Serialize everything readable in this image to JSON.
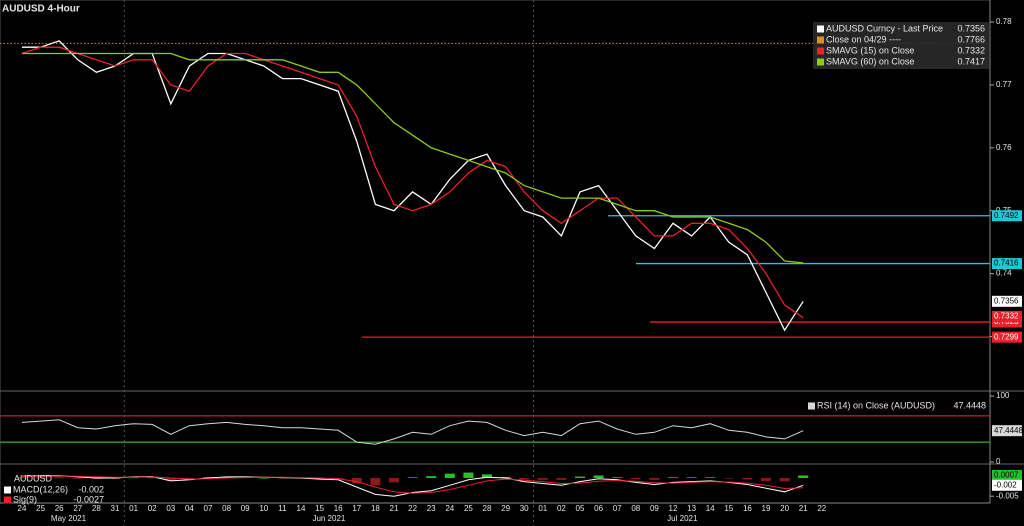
{
  "chart_data": [
    {
      "type": "line",
      "title": "AUDUSD 4-Hour",
      "categories": [
        "24",
        "25",
        "26",
        "27",
        "28",
        "31",
        "01",
        "02",
        "03",
        "04",
        "07",
        "08",
        "09",
        "10",
        "11",
        "14",
        "15",
        "16",
        "17",
        "18",
        "21",
        "22",
        "23",
        "24",
        "25",
        "28",
        "29",
        "30",
        "01",
        "02",
        "05",
        "06",
        "07",
        "08",
        "09",
        "12",
        "13",
        "14",
        "15",
        "16",
        "19",
        "20",
        "21",
        "22"
      ],
      "months": [
        "May 2021",
        "Jun 2021",
        "Jul 2021"
      ],
      "ylim": [
        0.7215,
        0.7835
      ],
      "yticks": [
        0.73,
        0.74,
        0.75,
        0.76,
        0.77,
        0.78
      ],
      "series": [
        {
          "name": "AUDUSD Curncy - Last Price",
          "color": "#ffffff",
          "last": 0.7356,
          "tag": true,
          "values": [
            0.776,
            0.776,
            0.777,
            0.774,
            0.772,
            0.773,
            0.775,
            0.775,
            0.767,
            0.773,
            0.775,
            0.775,
            0.774,
            0.773,
            0.771,
            0.771,
            0.77,
            0.769,
            0.761,
            0.751,
            0.75,
            0.753,
            0.751,
            0.755,
            0.758,
            0.759,
            0.754,
            0.75,
            0.749,
            0.746,
            0.753,
            0.754,
            0.75,
            0.746,
            0.744,
            0.748,
            0.746,
            0.749,
            0.745,
            0.743,
            0.737,
            0.731,
            0.7356,
            null
          ]
        },
        {
          "name": "Close on 04/29 ----",
          "color": "#d8902a",
          "kind": "hline",
          "style": "dotted",
          "last": 0.7766
        },
        {
          "name": "SMAVG (15)  on Close",
          "color": "#e8212b",
          "last": 0.7332,
          "tag": true,
          "values": [
            0.775,
            0.776,
            0.776,
            0.775,
            0.774,
            0.773,
            0.774,
            0.774,
            0.77,
            0.769,
            0.773,
            0.775,
            0.775,
            0.774,
            0.773,
            0.772,
            0.771,
            0.77,
            0.765,
            0.757,
            0.751,
            0.75,
            0.751,
            0.753,
            0.756,
            0.758,
            0.757,
            0.753,
            0.75,
            0.748,
            0.75,
            0.752,
            0.752,
            0.749,
            0.746,
            0.746,
            0.748,
            0.748,
            0.747,
            0.744,
            0.74,
            0.735,
            0.733,
            null
          ]
        },
        {
          "name": "SMAVG (60)  on Close",
          "color": "#8ccc1e",
          "last": 0.7417,
          "values": [
            0.775,
            0.775,
            0.775,
            0.775,
            0.775,
            0.775,
            0.775,
            0.775,
            0.775,
            0.774,
            0.774,
            0.774,
            0.774,
            0.774,
            0.774,
            0.773,
            0.772,
            0.772,
            0.77,
            0.767,
            0.764,
            0.762,
            0.76,
            0.759,
            0.758,
            0.757,
            0.756,
            0.754,
            0.753,
            0.752,
            0.752,
            0.752,
            0.751,
            0.75,
            0.75,
            0.749,
            0.749,
            0.749,
            0.748,
            0.747,
            0.745,
            0.742,
            0.7417,
            null
          ]
        }
      ],
      "levels": [
        {
          "value": 0.7492,
          "color": "#1ec8d8"
        },
        {
          "value": 0.7416,
          "color": "#1ec8d8"
        },
        {
          "value": 0.7323,
          "color": "#e8212b"
        },
        {
          "value": 0.7299,
          "color": "#e8212b"
        }
      ]
    },
    {
      "type": "line",
      "ylim": [
        0,
        100
      ],
      "yticks": [
        0,
        100
      ],
      "series": [
        {
          "name": "RSI (14)  on Close (AUDUSD)",
          "color": "#d8d8d8",
          "last": 47.4448,
          "tag": true,
          "values": [
            60,
            62,
            64,
            52,
            50,
            55,
            58,
            57,
            42,
            55,
            58,
            60,
            57,
            55,
            52,
            52,
            50,
            48,
            30,
            27,
            35,
            45,
            42,
            55,
            62,
            60,
            48,
            40,
            45,
            40,
            58,
            62,
            50,
            42,
            45,
            55,
            52,
            58,
            48,
            45,
            38,
            35,
            47.4448,
            null
          ]
        }
      ],
      "levels": [
        {
          "value": 70,
          "color": "#c8141e"
        },
        {
          "value": 30,
          "color": "#2ea02e"
        }
      ]
    },
    {
      "type": "line",
      "title": "AUDUSD",
      "ylim": [
        -0.0066,
        0.0033
      ],
      "yticks": [
        -0.005
      ],
      "series": [
        {
          "color": "#22c02a",
          "kind": "bar",
          "last": 0.0007,
          "tag": true,
          "values": [
            0.0001,
            0.0001,
            0.0001,
            -0.0002,
            -0.0003,
            -0.0002,
            0.0001,
            0.0001,
            -0.0008,
            -0.0002,
            0.0002,
            0.0003,
            0.0002,
            0,
            -0.0001,
            -0.0001,
            -0.0003,
            -0.0003,
            -0.0015,
            -0.002,
            -0.0012,
            0.0002,
            0.0005,
            0.0012,
            0.0015,
            0.001,
            0.0003,
            -0.0004,
            -0.0005,
            -0.0005,
            0.0004,
            0.0007,
            0.0002,
            -0.0003,
            -0.0005,
            0.0002,
            0.0002,
            0.0002,
            -0.0001,
            -0.0004,
            -0.0008,
            -0.0009,
            0.0007,
            null
          ]
        },
        {
          "name": "MACD(12,26)",
          "color": "#ffffff",
          "last": -0.002,
          "tag": true,
          "values": [
            0.0005,
            0.0006,
            0.0006,
            0.0003,
            0,
            0,
            0.0003,
            0.0004,
            -0.0008,
            -0.0005,
            0,
            0.0003,
            0.0003,
            0.0002,
            0.0001,
            0,
            -0.0003,
            -0.0005,
            -0.0025,
            -0.0045,
            -0.005,
            -0.004,
            -0.0035,
            -0.002,
            -0.0005,
            0.0002,
            0,
            -0.001,
            -0.0015,
            -0.002,
            -0.001,
            -0.0002,
            -0.0005,
            -0.0012,
            -0.0018,
            -0.0012,
            -0.001,
            -0.0008,
            -0.0012,
            -0.0018,
            -0.0028,
            -0.0038,
            -0.002,
            null
          ]
        },
        {
          "name": "Sig(9)",
          "color": "#e8212b",
          "last": -0.0027,
          "values": [
            0.0004,
            0.0005,
            0.0005,
            0.0005,
            0.0003,
            0.0002,
            0.0002,
            0.0003,
            0,
            -0.0003,
            -0.0002,
            0,
            0.0001,
            0.0002,
            0.0002,
            0.0001,
            0,
            -0.0002,
            -0.001,
            -0.0025,
            -0.0038,
            -0.0042,
            -0.004,
            -0.0032,
            -0.002,
            -0.0008,
            -0.0003,
            -0.0006,
            -0.001,
            -0.0015,
            -0.0014,
            -0.0009,
            -0.0007,
            -0.0009,
            -0.0013,
            -0.0014,
            -0.0012,
            -0.001,
            -0.0011,
            -0.0014,
            -0.002,
            -0.0029,
            -0.0027,
            null
          ]
        }
      ]
    }
  ]
}
